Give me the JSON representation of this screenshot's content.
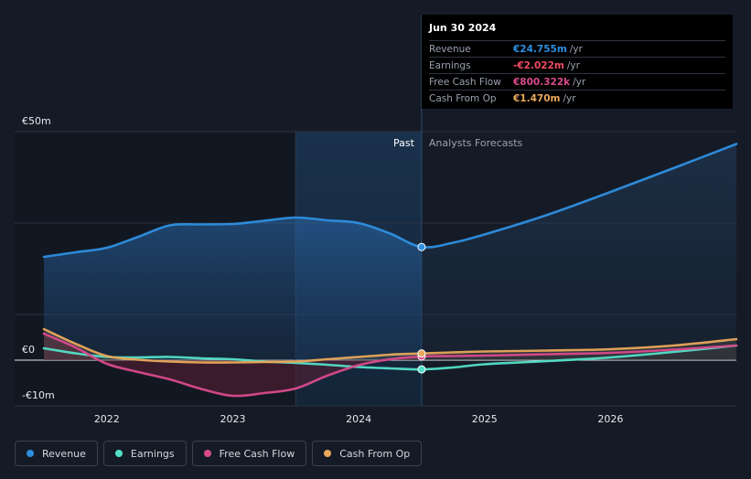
{
  "chart_data": {
    "type": "line",
    "x_unit": "year",
    "y_unit": "€m",
    "ylim": [
      -10,
      50
    ],
    "xlim": [
      2021.5,
      2027.0
    ],
    "y_tick_labels": [
      {
        "value": 50,
        "label": "€50m"
      },
      {
        "value": 0,
        "label": "€0"
      },
      {
        "value": -10,
        "label": "-€10m"
      }
    ],
    "x_tick_labels": [
      {
        "value": 2022.0,
        "label": "2022"
      },
      {
        "value": 2023.0,
        "label": "2023"
      },
      {
        "value": 2024.0,
        "label": "2024"
      },
      {
        "value": 2025.0,
        "label": "2025"
      },
      {
        "value": 2026.0,
        "label": "2026"
      }
    ],
    "past_label": "Past",
    "forecast_label": "Analysts Forecasts",
    "past_end": 2024.5,
    "highlight_start": 2023.5,
    "series": [
      {
        "name": "Revenue",
        "key": "revenue",
        "color": "#2e8fe0",
        "points": [
          [
            2021.5,
            22.6
          ],
          [
            2021.75,
            23.6
          ],
          [
            2022.0,
            24.6
          ],
          [
            2022.25,
            27.0
          ],
          [
            2022.5,
            29.5
          ],
          [
            2022.75,
            29.7
          ],
          [
            2023.0,
            29.8
          ],
          [
            2023.25,
            30.5
          ],
          [
            2023.5,
            31.2
          ],
          [
            2023.75,
            30.6
          ],
          [
            2024.0,
            30.0
          ],
          [
            2024.25,
            27.7
          ],
          [
            2024.5,
            24.755
          ],
          [
            2024.75,
            25.7
          ],
          [
            2025.0,
            27.5
          ],
          [
            2025.5,
            31.8
          ],
          [
            2026.0,
            36.8
          ],
          [
            2026.5,
            42.0
          ],
          [
            2027.0,
            47.3
          ]
        ]
      },
      {
        "name": "Earnings",
        "key": "earnings",
        "color": "#53e0c8",
        "points": [
          [
            2021.5,
            2.6
          ],
          [
            2021.75,
            1.5
          ],
          [
            2022.0,
            0.7
          ],
          [
            2022.25,
            0.6
          ],
          [
            2022.5,
            0.7
          ],
          [
            2022.75,
            0.4
          ],
          [
            2023.0,
            0.2
          ],
          [
            2023.25,
            -0.3
          ],
          [
            2023.5,
            -0.6
          ],
          [
            2023.75,
            -1.0
          ],
          [
            2024.0,
            -1.5
          ],
          [
            2024.25,
            -1.8
          ],
          [
            2024.5,
            -2.022
          ],
          [
            2024.75,
            -1.6
          ],
          [
            2025.0,
            -0.9
          ],
          [
            2025.5,
            -0.2
          ],
          [
            2026.0,
            0.6
          ],
          [
            2026.5,
            1.8
          ],
          [
            2027.0,
            3.2
          ]
        ]
      },
      {
        "name": "Free Cash Flow",
        "key": "fcf",
        "color": "#d94a8c",
        "points": [
          [
            2021.5,
            5.8
          ],
          [
            2021.75,
            2.8
          ],
          [
            2022.0,
            -0.8
          ],
          [
            2022.25,
            -2.6
          ],
          [
            2022.5,
            -4.2
          ],
          [
            2022.75,
            -6.3
          ],
          [
            2023.0,
            -7.8
          ],
          [
            2023.25,
            -7.2
          ],
          [
            2023.5,
            -6.2
          ],
          [
            2023.75,
            -3.4
          ],
          [
            2024.0,
            -1.1
          ],
          [
            2024.25,
            0.2
          ],
          [
            2024.5,
            0.8
          ],
          [
            2024.75,
            0.9
          ],
          [
            2025.0,
            1.0
          ],
          [
            2025.5,
            1.3
          ],
          [
            2026.0,
            1.6
          ],
          [
            2026.5,
            2.3
          ],
          [
            2027.0,
            3.2
          ]
        ]
      },
      {
        "name": "Cash From Op",
        "key": "cfo",
        "color": "#e8a85a",
        "points": [
          [
            2021.5,
            6.8
          ],
          [
            2021.75,
            3.6
          ],
          [
            2022.0,
            0.9
          ],
          [
            2022.25,
            0.1
          ],
          [
            2022.5,
            -0.3
          ],
          [
            2022.75,
            -0.5
          ],
          [
            2023.0,
            -0.5
          ],
          [
            2023.25,
            -0.4
          ],
          [
            2023.5,
            -0.3
          ],
          [
            2023.75,
            0.2
          ],
          [
            2024.0,
            0.7
          ],
          [
            2024.25,
            1.2
          ],
          [
            2024.5,
            1.47
          ],
          [
            2024.75,
            1.7
          ],
          [
            2025.0,
            1.9
          ],
          [
            2025.5,
            2.1
          ],
          [
            2026.0,
            2.4
          ],
          [
            2026.5,
            3.2
          ],
          [
            2027.0,
            4.6
          ]
        ]
      }
    ]
  },
  "tooltip": {
    "date": "Jun 30 2024",
    "rows": [
      {
        "label": "Revenue",
        "value": "€24.755m",
        "unit": "/yr",
        "color": "#2e8fe0"
      },
      {
        "label": "Earnings",
        "value": "-€2.022m",
        "unit": "/yr",
        "color": "#ef4c63"
      },
      {
        "label": "Free Cash Flow",
        "value": "€800.322k",
        "unit": "/yr",
        "color": "#d94a8c"
      },
      {
        "label": "Cash From Op",
        "value": "€1.470m",
        "unit": "/yr",
        "color": "#e8a85a"
      }
    ]
  },
  "legend": [
    {
      "label": "Revenue",
      "color": "#2e8fe0"
    },
    {
      "label": "Earnings",
      "color": "#53e0c8"
    },
    {
      "label": "Free Cash Flow",
      "color": "#d94a8c"
    },
    {
      "label": "Cash From Op",
      "color": "#e8a85a"
    }
  ]
}
